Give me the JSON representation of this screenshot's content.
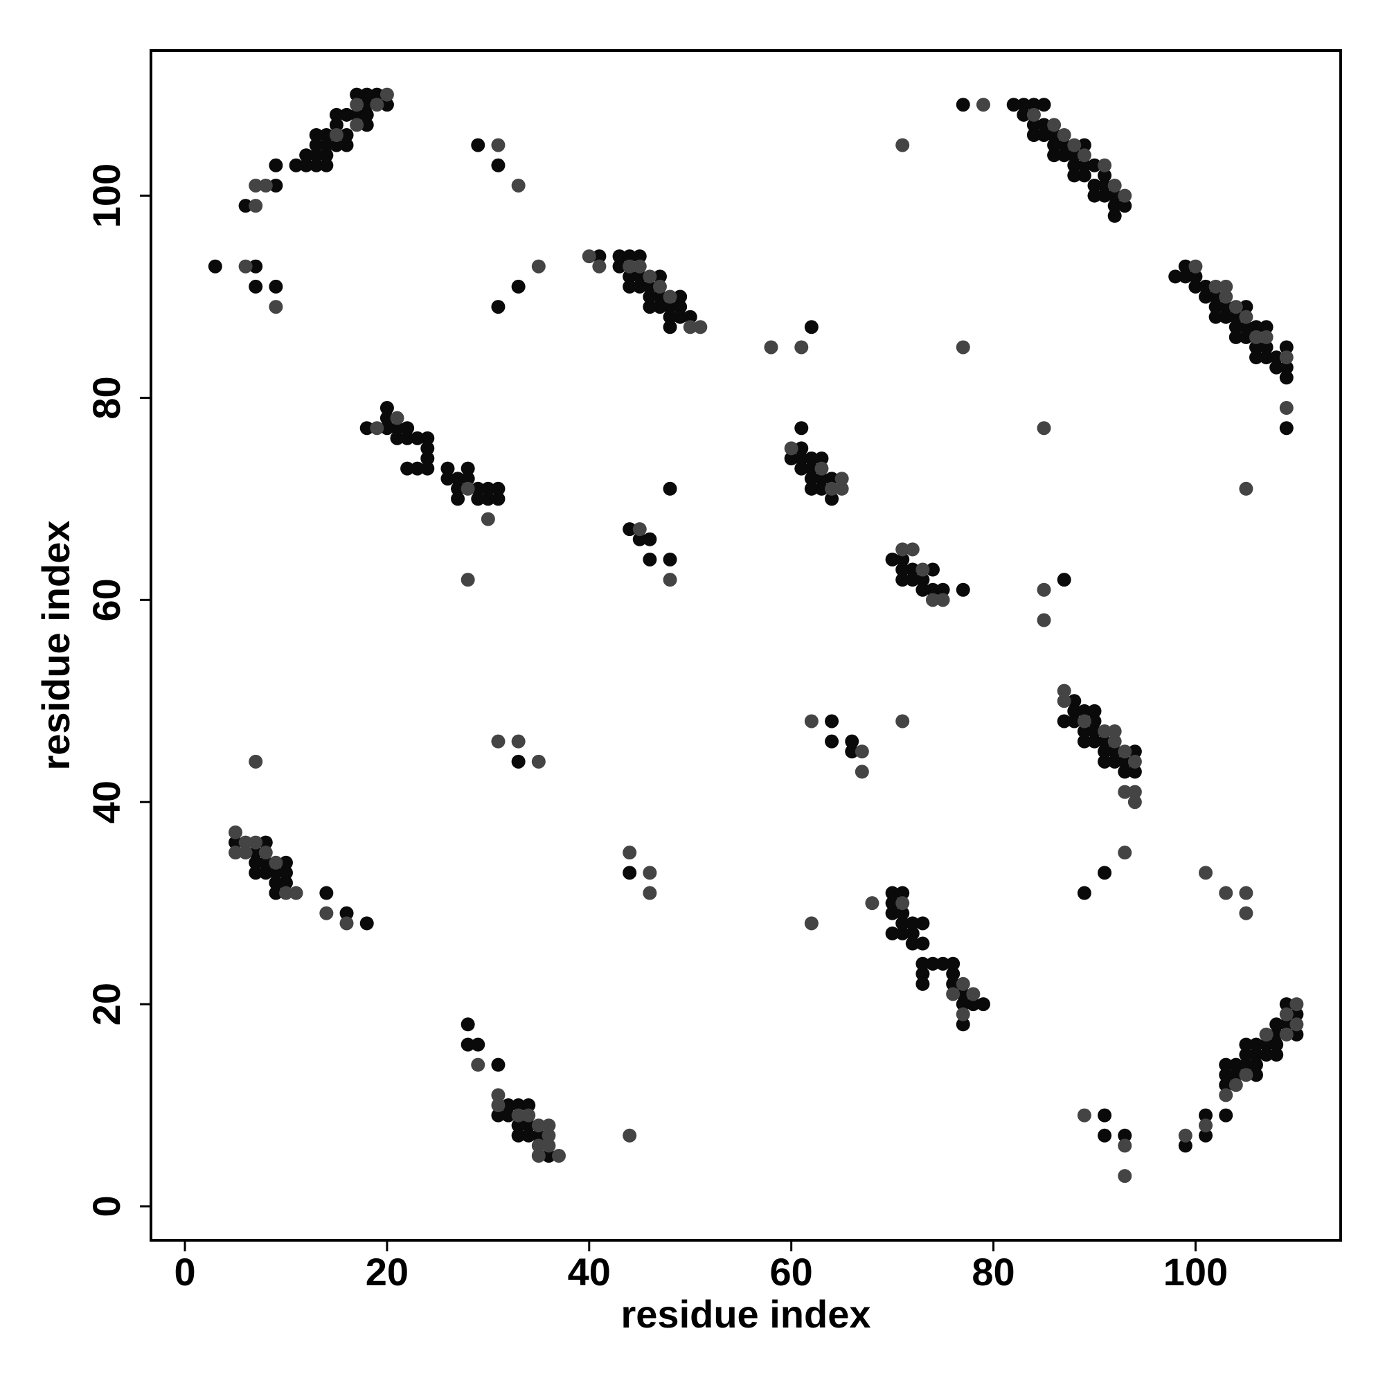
{
  "chart_data": {
    "type": "scatter",
    "xlabel": "residue index",
    "ylabel": "residue index",
    "xlim": [
      -3.36,
      114.36
    ],
    "ylim": [
      -3.36,
      114.36
    ],
    "xticks": [
      0,
      20,
      40,
      60,
      80,
      100
    ],
    "yticks": [
      0,
      20,
      40,
      60,
      80,
      100
    ],
    "series": [
      {
        "color": "#0a0a0a",
        "x": [
          6,
          9,
          9,
          11,
          12,
          12,
          13,
          13,
          13,
          13,
          14,
          14,
          14,
          14,
          15,
          15,
          15,
          16,
          16,
          16,
          17,
          17,
          18,
          18,
          18,
          18,
          19,
          20,
          3,
          7,
          7,
          9,
          29,
          31,
          33,
          31,
          41,
          43,
          43,
          44,
          44,
          44,
          45,
          45,
          45,
          46,
          46,
          46,
          47,
          47,
          47,
          48,
          48,
          48,
          49,
          49,
          49,
          50,
          18,
          20,
          20,
          20,
          21,
          21,
          22,
          22,
          22,
          23,
          23,
          24,
          24,
          24,
          24,
          26,
          26,
          27,
          27,
          27,
          28,
          28,
          29,
          29,
          30,
          30,
          31,
          31,
          44,
          45,
          46,
          46,
          48,
          48,
          62,
          60,
          61,
          61,
          61,
          61,
          62,
          62,
          62,
          62,
          63,
          63,
          63,
          64,
          64,
          77,
          82,
          83,
          83,
          84,
          84,
          84,
          85,
          85,
          85,
          86,
          86,
          86,
          87,
          87,
          88,
          88,
          88,
          89,
          89,
          89,
          90,
          90,
          90,
          91,
          91,
          91,
          92,
          92,
          92,
          93,
          98,
          99,
          99,
          100,
          100,
          101,
          101,
          102,
          102,
          102,
          103,
          103,
          104,
          104,
          104,
          105,
          105,
          105,
          106,
          106,
          106,
          107,
          107,
          107,
          108,
          108,
          109,
          109,
          109,
          109,
          70,
          71,
          71,
          71,
          72,
          72,
          73,
          73,
          74,
          74,
          75,
          77,
          87,
          87,
          88,
          88,
          88,
          89,
          89,
          89,
          90,
          90,
          90,
          90,
          91,
          91,
          91,
          92,
          92,
          93,
          93,
          94,
          94,
          64,
          64,
          66,
          66,
          33,
          5,
          7,
          7,
          7,
          8,
          8,
          8,
          9,
          9,
          9,
          10,
          10,
          10,
          14,
          16,
          18,
          44,
          70,
          70,
          70,
          70,
          71,
          71,
          71,
          71,
          72,
          72,
          72,
          73,
          73,
          73,
          73,
          73,
          74,
          75,
          76,
          76,
          76,
          77,
          77,
          77,
          78,
          79,
          91,
          89,
          99,
          101,
          101,
          103,
          103,
          103,
          103,
          104,
          104,
          105,
          105,
          105,
          106,
          106,
          106,
          106,
          107,
          107,
          108,
          108,
          108,
          108,
          109,
          109,
          110,
          110,
          91,
          91,
          93,
          28,
          28,
          29,
          31,
          31,
          32,
          32,
          33,
          33,
          33,
          34,
          34,
          34,
          35,
          36
        ],
        "values": [
          99,
          101,
          103,
          103,
          103,
          104,
          103,
          104,
          105,
          106,
          103,
          104,
          106,
          105,
          105,
          107,
          108,
          105,
          106,
          108,
          108,
          110,
          107,
          108,
          109,
          110,
          110,
          109,
          93,
          93,
          91,
          91,
          105,
          103,
          91,
          89,
          94,
          94,
          93,
          94,
          92,
          91,
          94,
          92,
          91,
          91,
          90,
          89,
          92,
          90,
          89,
          89,
          88,
          87,
          90,
          89,
          88,
          88,
          77,
          79,
          78,
          77,
          77,
          76,
          77,
          76,
          73,
          76,
          73,
          76,
          75,
          74,
          73,
          73,
          72,
          72,
          71,
          70,
          73,
          72,
          71,
          70,
          71,
          70,
          71,
          70,
          67,
          66,
          66,
          64,
          64,
          71,
          87,
          74,
          77,
          75,
          74,
          73,
          74,
          73,
          72,
          71,
          74,
          72,
          71,
          72,
          70,
          109,
          109,
          109,
          108,
          109,
          107,
          106,
          109,
          107,
          106,
          106,
          105,
          104,
          105,
          104,
          104,
          103,
          102,
          105,
          103,
          102,
          103,
          101,
          100,
          102,
          101,
          100,
          100,
          99,
          98,
          99,
          92,
          93,
          92,
          92,
          91,
          91,
          90,
          90,
          89,
          88,
          89,
          88,
          88,
          87,
          86,
          89,
          87,
          86,
          87,
          85,
          84,
          87,
          85,
          84,
          83,
          84,
          85,
          83,
          82,
          77,
          64,
          64,
          63,
          62,
          63,
          62,
          62,
          61,
          63,
          61,
          61,
          61,
          62,
          48,
          50,
          49,
          48,
          49,
          47,
          46,
          49,
          48,
          47,
          46,
          46,
          45,
          44,
          45,
          44,
          44,
          43,
          45,
          43,
          48,
          46,
          46,
          45,
          44,
          36,
          35,
          34,
          33,
          36,
          34,
          33,
          33,
          32,
          31,
          34,
          33,
          32,
          31,
          29,
          28,
          33,
          31,
          30,
          29,
          27,
          31,
          29,
          28,
          27,
          28,
          27,
          26,
          28,
          26,
          24,
          23,
          22,
          24,
          24,
          24,
          23,
          22,
          21,
          20,
          18,
          20,
          20,
          33,
          31,
          6,
          9,
          7,
          14,
          13,
          12,
          9,
          14,
          13,
          16,
          15,
          14,
          16,
          15,
          14,
          13,
          16,
          15,
          18,
          17,
          16,
          15,
          20,
          18,
          19,
          17,
          9,
          7,
          7,
          18,
          16,
          16,
          14,
          9,
          10,
          9,
          10,
          8,
          7,
          10,
          8,
          7,
          7,
          5
        ]
      },
      {
        "color": "#444444",
        "x": [
          7,
          7,
          8,
          15,
          17,
          17,
          19,
          20,
          6,
          9,
          31,
          33,
          35,
          40,
          41,
          44,
          45,
          46,
          47,
          48,
          50,
          51,
          19,
          21,
          28,
          30,
          28,
          45,
          48,
          58,
          61,
          60,
          63,
          64,
          65,
          65,
          71,
          79,
          84,
          86,
          87,
          88,
          89,
          91,
          92,
          93,
          100,
          102,
          103,
          103,
          104,
          105,
          106,
          107,
          109,
          109,
          77,
          85,
          105,
          71,
          72,
          73,
          74,
          75,
          85,
          85,
          87,
          87,
          89,
          91,
          92,
          92,
          93,
          93,
          94,
          94,
          94,
          62,
          67,
          67,
          71,
          31,
          33,
          35,
          7,
          5,
          5,
          6,
          6,
          7,
          8,
          9,
          10,
          11,
          14,
          16,
          44,
          46,
          46,
          62,
          68,
          71,
          76,
          77,
          77,
          78,
          93,
          101,
          103,
          105,
          105,
          99,
          101,
          103,
          104,
          105,
          107,
          109,
          109,
          110,
          110,
          89,
          93,
          93,
          29,
          31,
          31,
          33,
          34,
          35,
          35,
          35,
          36,
          36,
          36,
          37,
          44
        ],
        "values": [
          99,
          101,
          101,
          106,
          107,
          109,
          109,
          110,
          93,
          89,
          105,
          101,
          93,
          94,
          93,
          93,
          93,
          92,
          91,
          90,
          87,
          87,
          77,
          78,
          71,
          68,
          62,
          67,
          62,
          85,
          85,
          75,
          73,
          71,
          72,
          71,
          105,
          109,
          108,
          107,
          106,
          105,
          104,
          103,
          101,
          100,
          93,
          91,
          91,
          90,
          89,
          88,
          86,
          86,
          84,
          79,
          85,
          77,
          71,
          65,
          65,
          63,
          60,
          60,
          61,
          58,
          51,
          50,
          48,
          47,
          47,
          46,
          45,
          41,
          44,
          41,
          40,
          48,
          45,
          43,
          48,
          46,
          46,
          44,
          44,
          37,
          35,
          36,
          35,
          36,
          35,
          34,
          31,
          31,
          29,
          28,
          35,
          33,
          31,
          28,
          30,
          30,
          21,
          22,
          19,
          21,
          35,
          33,
          31,
          31,
          29,
          7,
          8,
          11,
          12,
          13,
          17,
          19,
          17,
          20,
          18,
          9,
          6,
          3,
          14,
          11,
          10,
          9,
          9,
          8,
          6,
          5,
          8,
          7,
          6,
          5,
          7
        ]
      }
    ]
  }
}
